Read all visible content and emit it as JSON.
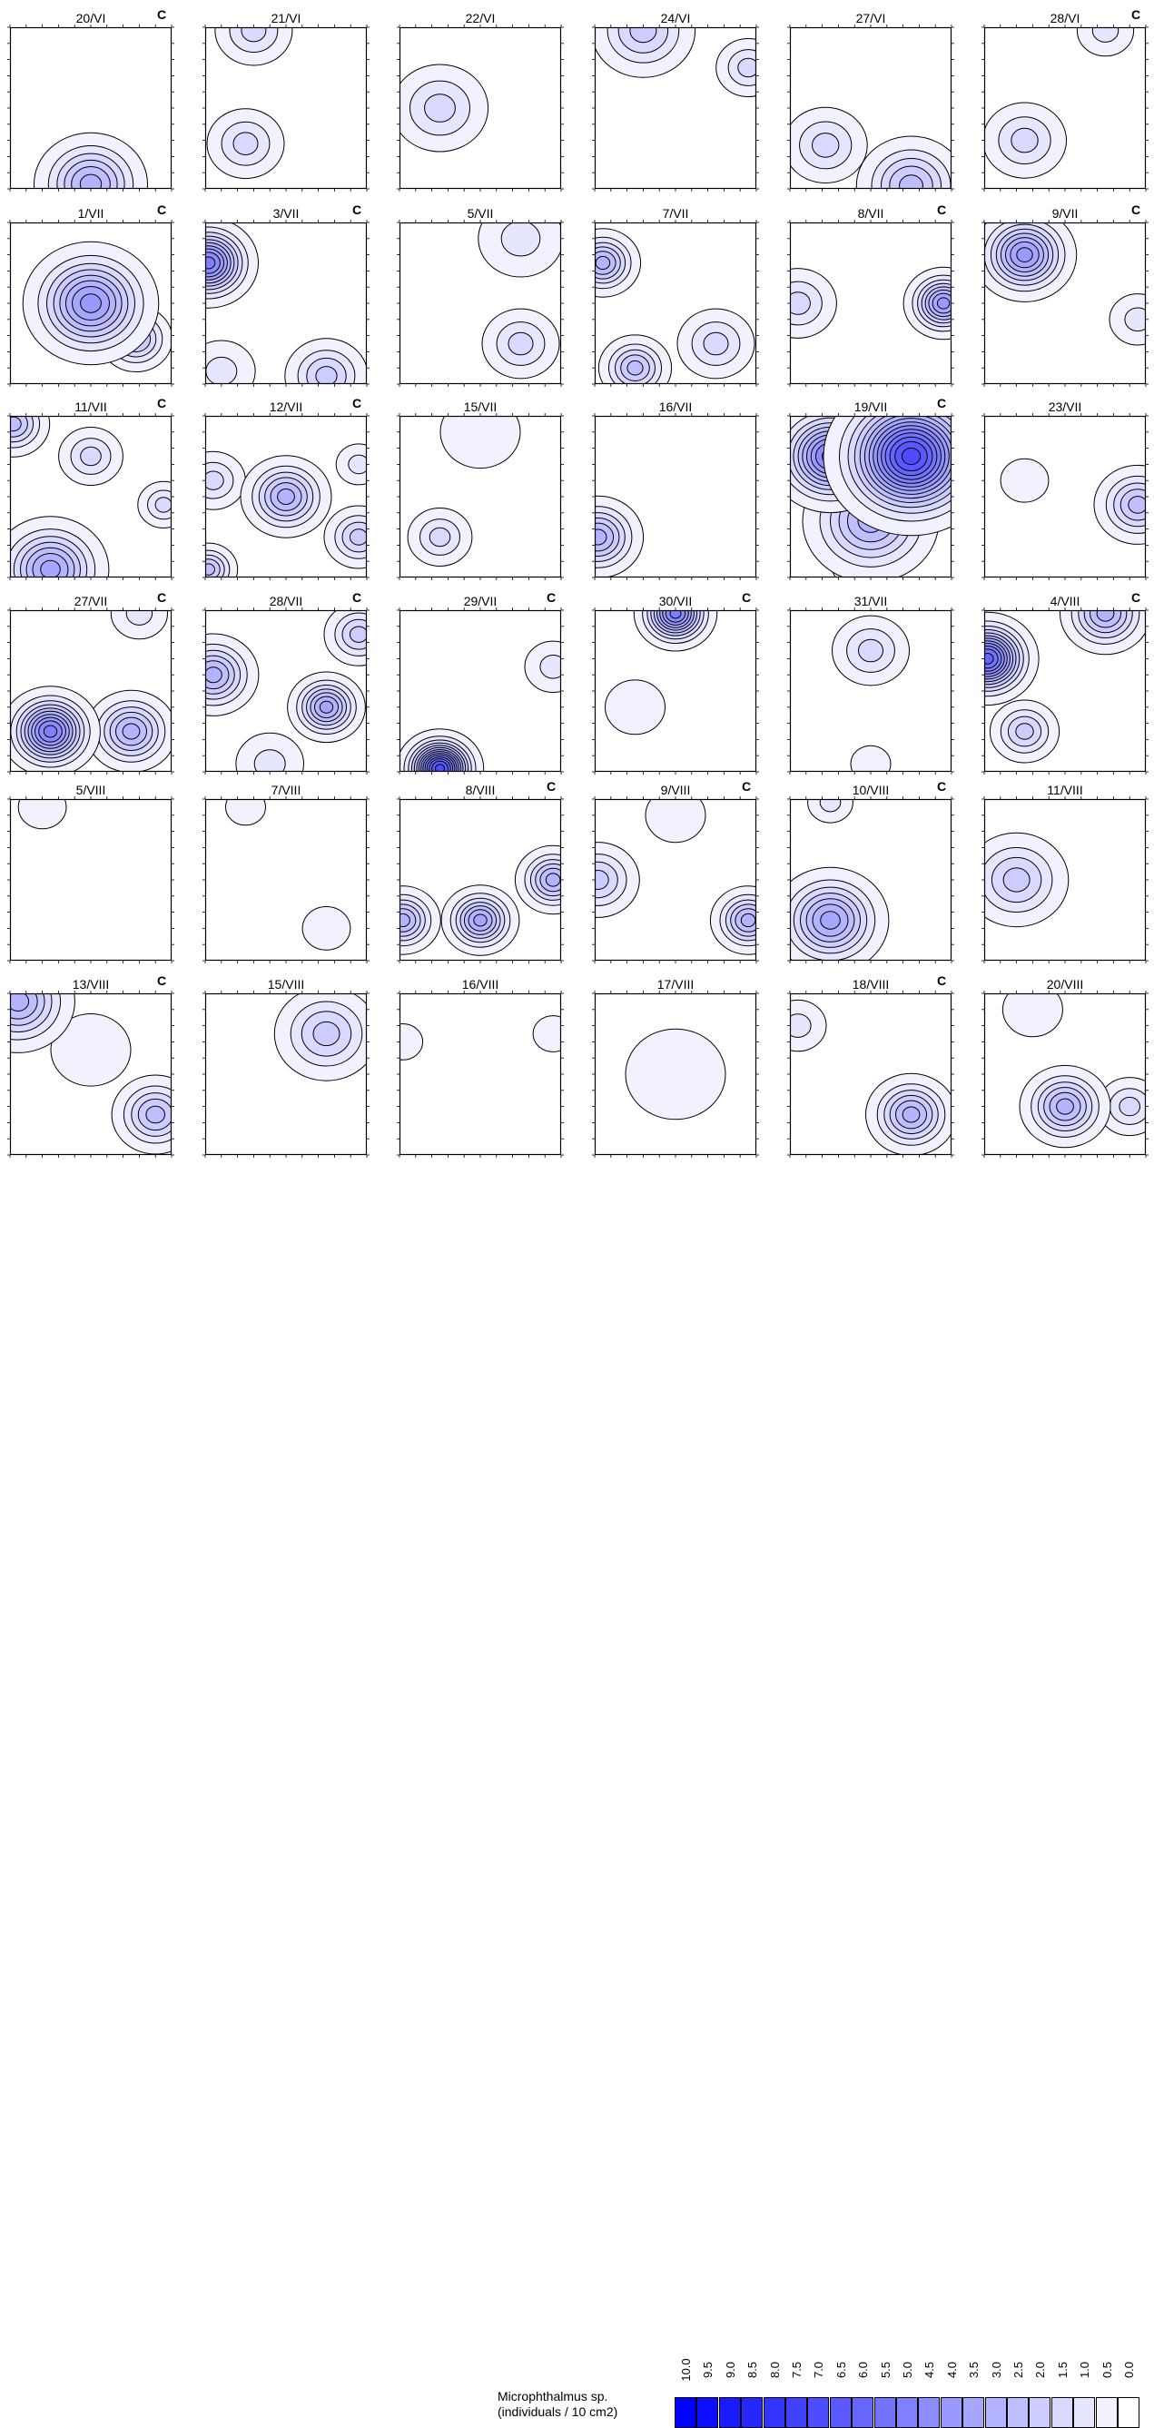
{
  "chart_data": {
    "type": "heatmap",
    "variable": "Microphthalmus sp.",
    "unit": "(individuals / 10 cm2)",
    "colorscale": {
      "low_color": "#ffffff",
      "high_color": "#0000ff",
      "levels": [
        "10.0",
        "9.5",
        "9.0",
        "8.5",
        "8.0",
        "7.5",
        "7.0",
        "6.5",
        "6.0",
        "5.5",
        "5.0",
        "4.5",
        "4.0",
        "3.5",
        "3.0",
        "2.5",
        "2.0",
        "1.5",
        "1.0",
        "0.5",
        "0.0"
      ]
    },
    "flag_label": "C",
    "panels": [
      {
        "date": "20/VI",
        "flag": true,
        "peaks": [
          [
            0.5,
            0.97,
            3.0,
            0.15
          ]
        ]
      },
      {
        "date": "21/VI",
        "flag": false,
        "peaks": [
          [
            0.3,
            0.02,
            1.5,
            0.12
          ],
          [
            0.25,
            0.72,
            1.5,
            0.12
          ]
        ]
      },
      {
        "date": "22/VI",
        "flag": false,
        "peaks": [
          [
            0.25,
            0.5,
            1.5,
            0.15
          ]
        ]
      },
      {
        "date": "24/VI",
        "flag": false,
        "peaks": [
          [
            0.3,
            0.02,
            2.0,
            0.15
          ],
          [
            0.95,
            0.25,
            1.5,
            0.1
          ]
        ]
      },
      {
        "date": "27/VI",
        "flag": false,
        "peaks": [
          [
            0.75,
            0.98,
            2.5,
            0.15
          ],
          [
            0.22,
            0.73,
            1.5,
            0.13
          ]
        ]
      },
      {
        "date": "28/VI",
        "flag": true,
        "peaks": [
          [
            0.75,
            0.02,
            1.0,
            0.1
          ],
          [
            0.25,
            0.7,
            1.5,
            0.13
          ]
        ]
      },
      {
        "date": "1/VII",
        "flag": true,
        "peaks": [
          [
            0.5,
            0.5,
            4.0,
            0.17
          ],
          [
            0.78,
            0.72,
            2.5,
            0.1
          ]
        ]
      },
      {
        "date": "3/VII",
        "flag": true,
        "peaks": [
          [
            0.02,
            0.25,
            5.0,
            0.12
          ],
          [
            0.75,
            0.95,
            2.0,
            0.12
          ],
          [
            0.1,
            0.92,
            1.0,
            0.12
          ]
        ]
      },
      {
        "date": "5/VII",
        "flag": false,
        "peaks": [
          [
            0.75,
            0.1,
            1.0,
            0.15
          ],
          [
            0.75,
            0.75,
            1.5,
            0.12
          ]
        ]
      },
      {
        "date": "7/VII",
        "flag": false,
        "peaks": [
          [
            0.05,
            0.25,
            3.0,
            0.1
          ],
          [
            0.25,
            0.9,
            2.5,
            0.1
          ],
          [
            0.75,
            0.75,
            1.5,
            0.12
          ]
        ]
      },
      {
        "date": "8/VII",
        "flag": true,
        "peaks": [
          [
            0.95,
            0.5,
            4.0,
            0.1
          ],
          [
            0.05,
            0.5,
            1.5,
            0.12
          ]
        ]
      },
      {
        "date": "9/VII",
        "flag": true,
        "peaks": [
          [
            0.25,
            0.2,
            4.0,
            0.13
          ],
          [
            0.95,
            0.6,
            1.0,
            0.1
          ]
        ]
      },
      {
        "date": "11/VII",
        "flag": true,
        "peaks": [
          [
            0.25,
            0.95,
            3.5,
            0.15
          ],
          [
            0.02,
            0.05,
            2.5,
            0.1
          ],
          [
            0.5,
            0.25,
            1.5,
            0.1
          ],
          [
            0.95,
            0.55,
            1.5,
            0.08
          ]
        ]
      },
      {
        "date": "12/VII",
        "flag": true,
        "peaks": [
          [
            0.5,
            0.5,
            3.0,
            0.12
          ],
          [
            0.02,
            0.95,
            2.5,
            0.08
          ],
          [
            0.95,
            0.75,
            2.0,
            0.1
          ],
          [
            0.05,
            0.4,
            1.5,
            0.1
          ],
          [
            0.95,
            0.3,
            1.0,
            0.08
          ]
        ]
      },
      {
        "date": "15/VII",
        "flag": false,
        "peaks": [
          [
            0.25,
            0.75,
            1.5,
            0.1
          ],
          [
            0.5,
            0.1,
            0.5,
            0.2
          ]
        ]
      },
      {
        "date": "16/VII",
        "flag": false,
        "peaks": [
          [
            0.02,
            0.75,
            3.0,
            0.12
          ]
        ]
      },
      {
        "date": "19/VII",
        "flag": true,
        "peaks": [
          [
            0.75,
            0.25,
            7.0,
            0.2
          ],
          [
            0.25,
            0.25,
            5.0,
            0.15
          ],
          [
            0.5,
            0.65,
            3.0,
            0.18
          ],
          [
            0.45,
            0.9,
            1.5,
            0.1
          ]
        ]
      },
      {
        "date": "23/VII",
        "flag": false,
        "peaks": [
          [
            0.95,
            0.55,
            2.5,
            0.12
          ],
          [
            0.25,
            0.4,
            0.5,
            0.12
          ]
        ]
      },
      {
        "date": "27/VII",
        "flag": true,
        "peaks": [
          [
            0.25,
            0.75,
            5.0,
            0.12
          ],
          [
            0.75,
            0.75,
            3.0,
            0.12
          ],
          [
            0.8,
            0.02,
            1.0,
            0.1
          ]
        ]
      },
      {
        "date": "28/VII",
        "flag": true,
        "peaks": [
          [
            0.75,
            0.6,
            3.5,
            0.1
          ],
          [
            0.05,
            0.4,
            3.0,
            0.12
          ],
          [
            0.95,
            0.15,
            2.0,
            0.1
          ],
          [
            0.4,
            0.95,
            1.0,
            0.12
          ]
        ]
      },
      {
        "date": "29/VII",
        "flag": true,
        "peaks": [
          [
            0.25,
            0.98,
            7.0,
            0.1
          ],
          [
            0.95,
            0.35,
            1.0,
            0.1
          ]
        ]
      },
      {
        "date": "30/VII",
        "flag": true,
        "peaks": [
          [
            0.5,
            0.02,
            5.0,
            0.1
          ],
          [
            0.25,
            0.6,
            0.5,
            0.15
          ]
        ]
      },
      {
        "date": "31/VII",
        "flag": false,
        "peaks": [
          [
            0.5,
            0.25,
            1.5,
            0.12
          ],
          [
            0.5,
            0.95,
            0.5,
            0.1
          ]
        ]
      },
      {
        "date": "4/VIII",
        "flag": true,
        "peaks": [
          [
            0.02,
            0.3,
            6.0,
            0.12
          ],
          [
            0.75,
            0.02,
            3.0,
            0.12
          ],
          [
            0.25,
            0.75,
            2.0,
            0.1
          ]
        ]
      },
      {
        "date": "5/VIII",
        "flag": false,
        "peaks": [
          [
            0.2,
            0.05,
            0.5,
            0.12
          ]
        ]
      },
      {
        "date": "7/VIII",
        "flag": false,
        "peaks": [
          [
            0.25,
            0.05,
            0.5,
            0.1
          ],
          [
            0.75,
            0.8,
            0.5,
            0.12
          ]
        ]
      },
      {
        "date": "8/VIII",
        "flag": true,
        "peaks": [
          [
            0.5,
            0.75,
            3.5,
            0.1
          ],
          [
            0.02,
            0.75,
            3.0,
            0.1
          ],
          [
            0.95,
            0.5,
            3.0,
            0.1
          ]
        ]
      },
      {
        "date": "9/VIII",
        "flag": true,
        "peaks": [
          [
            0.95,
            0.75,
            3.0,
            0.1
          ],
          [
            0.02,
            0.5,
            2.0,
            0.12
          ],
          [
            0.5,
            0.1,
            0.5,
            0.15
          ]
        ]
      },
      {
        "date": "10/VIII",
        "flag": true,
        "peaks": [
          [
            0.25,
            0.75,
            3.5,
            0.15
          ],
          [
            0.25,
            0.02,
            1.0,
            0.08
          ]
        ]
      },
      {
        "date": "11/VIII",
        "flag": false,
        "peaks": [
          [
            0.2,
            0.5,
            2.0,
            0.15
          ]
        ]
      },
      {
        "date": "13/VIII",
        "flag": true,
        "peaks": [
          [
            0.05,
            0.05,
            3.0,
            0.15
          ],
          [
            0.9,
            0.75,
            2.5,
            0.12
          ],
          [
            0.5,
            0.35,
            0.5,
            0.2
          ]
        ]
      },
      {
        "date": "15/VIII",
        "flag": false,
        "peaks": [
          [
            0.75,
            0.25,
            2.0,
            0.15
          ]
        ]
      },
      {
        "date": "16/VIII",
        "flag": false,
        "peaks": [
          [
            0.02,
            0.3,
            0.5,
            0.1
          ],
          [
            0.95,
            0.25,
            0.5,
            0.1
          ]
        ]
      },
      {
        "date": "17/VIII",
        "flag": false,
        "peaks": [
          [
            0.5,
            0.5,
            0.5,
            0.25
          ]
        ]
      },
      {
        "date": "18/VIII",
        "flag": true,
        "peaks": [
          [
            0.75,
            0.75,
            3.0,
            0.12
          ],
          [
            0.05,
            0.2,
            1.0,
            0.1
          ]
        ]
      },
      {
        "date": "20/VIII",
        "flag": false,
        "peaks": [
          [
            0.5,
            0.7,
            3.0,
            0.12
          ],
          [
            0.9,
            0.7,
            1.5,
            0.1
          ],
          [
            0.3,
            0.1,
            0.5,
            0.15
          ]
        ]
      }
    ]
  }
}
